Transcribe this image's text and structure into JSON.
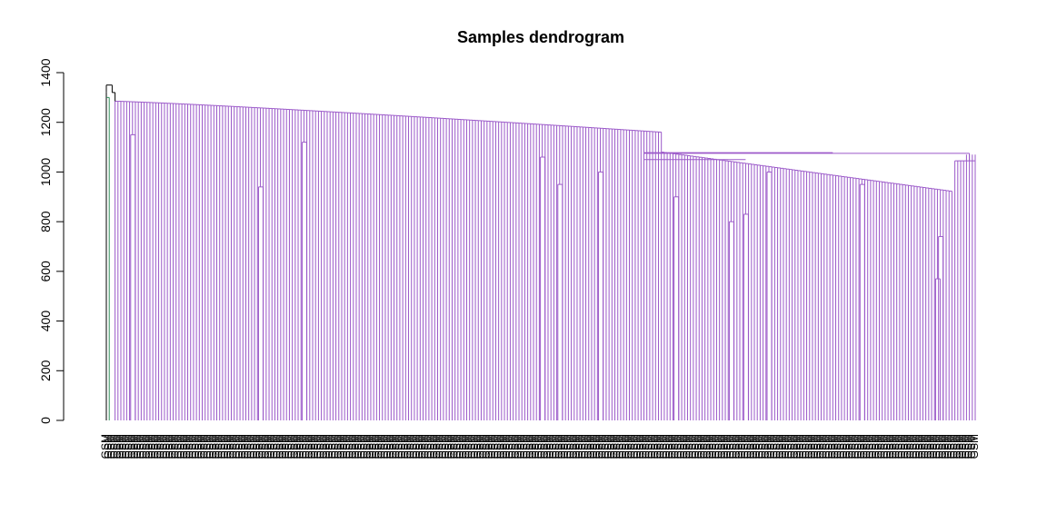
{
  "chart_data": {
    "type": "dendrogram",
    "title": "Samples dendrogram",
    "xlabel": "",
    "ylabel": "",
    "ylim": [
      0,
      1400
    ],
    "y_ticks": [
      0,
      200,
      400,
      600,
      800,
      1000,
      1200,
      1400
    ],
    "leaf_count": 300,
    "branch_colors": {
      "main": "#9b59c9",
      "root": "#000000",
      "cluster_2": "#2e8b57"
    },
    "root_heights": [
      1350,
      1320,
      1300
    ],
    "spine_start_height": 1285,
    "spine_end_height": 1080,
    "right_cluster_height": 1075,
    "notable_drops": [
      1150,
      940,
      1120,
      1060,
      950,
      1000,
      900,
      800,
      830,
      1000,
      950,
      570,
      740
    ],
    "leaf_label_sample": [
      "GSM",
      "GSM",
      "GSM"
    ]
  }
}
